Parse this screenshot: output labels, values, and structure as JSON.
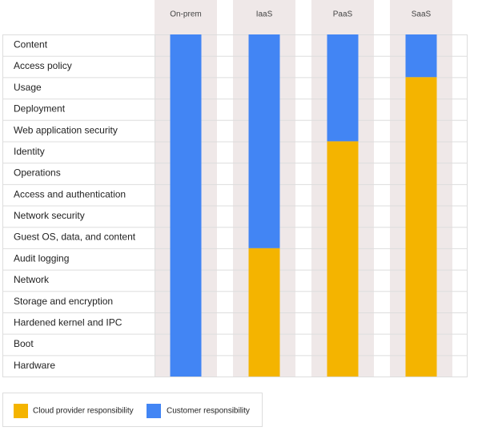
{
  "layers": [
    "Content",
    "Access policy",
    "Usage",
    "Deployment",
    "Web application security",
    "Identity",
    "Operations",
    "Access and authentication",
    "Network security",
    "Guest OS, data, and content",
    "Audit logging",
    "Network",
    "Storage and encryption",
    "Hardened kernel and IPC",
    "Boot",
    "Hardware"
  ],
  "columns": [
    {
      "name": "On-prem",
      "customer": 16,
      "provider": 0
    },
    {
      "name": "IaaS",
      "customer": 10,
      "provider": 6
    },
    {
      "name": "PaaS",
      "customer": 5,
      "provider": 11
    },
    {
      "name": "SaaS",
      "customer": 2,
      "provider": 14
    }
  ],
  "legend": {
    "provider": {
      "label": "Cloud provider responsibility",
      "color": "#f4b400"
    },
    "customer": {
      "label": "Customer responsibility",
      "color": "#4285f4"
    }
  }
}
